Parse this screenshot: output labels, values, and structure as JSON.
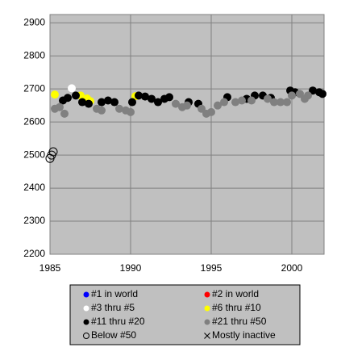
{
  "chart_data": {
    "type": "scatter",
    "xlim": [
      1985,
      2002
    ],
    "xticks": [
      1985,
      1990,
      1995,
      2000
    ],
    "ylim": [
      2200,
      2925
    ],
    "yticks": [
      2200,
      2300,
      2400,
      2500,
      2600,
      2700,
      2800,
      2900
    ],
    "grid": true,
    "legend": "bottom",
    "series": [
      {
        "name": "#1 in world",
        "color": "#0000ff",
        "marker": "filled",
        "x": [],
        "values": []
      },
      {
        "name": "#2 in world",
        "color": "#ff0000",
        "marker": "filled",
        "x": [],
        "values": []
      },
      {
        "name": "#3 thru #5",
        "color": "#ffffff",
        "marker": "filled",
        "x": [
          1986.35
        ],
        "values": [
          2702
        ]
      },
      {
        "name": "#6 thru #10",
        "color": "#ffff00",
        "marker": "filled",
        "x": [
          1985.3,
          1986.9,
          1987.3,
          1987.5,
          1990.3
        ],
        "values": [
          2683,
          2680,
          2671,
          2663,
          2678
        ]
      },
      {
        "name": "#11 thru #20",
        "color": "#000000",
        "marker": "filled",
        "x": [
          1985.8,
          1986.1,
          1986.6,
          1987.0,
          1987.4,
          1988.2,
          1988.6,
          1989.0,
          1990.1,
          1990.5,
          1990.9,
          1991.3,
          1991.7,
          1992.1,
          1992.4,
          1993.6,
          1994.2,
          1996.0,
          1997.2,
          1997.7,
          1998.2,
          1998.7,
          1999.9,
          2000.2,
          2001.3,
          2001.7,
          2001.9
        ],
        "values": [
          2665,
          2673,
          2680,
          2660,
          2655,
          2660,
          2665,
          2660,
          2660,
          2680,
          2677,
          2670,
          2660,
          2670,
          2675,
          2660,
          2655,
          2675,
          2670,
          2680,
          2680,
          2673,
          2695,
          2690,
          2695,
          2690,
          2685
        ]
      },
      {
        "name": "#21 thru #50",
        "color": "#808080",
        "marker": "filled",
        "x": [
          1985.3,
          1985.6,
          1985.9,
          1987.9,
          1988.2,
          1989.3,
          1989.7,
          1990.0,
          1992.8,
          1993.2,
          1993.5,
          1994.4,
          1994.7,
          1995.0,
          1995.4,
          1995.8,
          1996.5,
          1996.9,
          1997.5,
          1998.5,
          1998.9,
          1999.3,
          1999.7,
          2000.0,
          2000.5,
          2000.8,
          2001.0
        ],
        "values": [
          2640,
          2645,
          2625,
          2640,
          2635,
          2640,
          2635,
          2630,
          2655,
          2645,
          2650,
          2640,
          2625,
          2630,
          2650,
          2660,
          2660,
          2665,
          2665,
          2670,
          2660,
          2660,
          2660,
          2680,
          2685,
          2670,
          2680
        ]
      },
      {
        "name": "Below #50",
        "color": "#000000",
        "marker": "open",
        "x": [
          1985.0,
          1985.1,
          1985.2
        ],
        "values": [
          2490,
          2500,
          2510
        ]
      },
      {
        "name": "Mostly inactive",
        "color": "#000000",
        "marker": "cross",
        "x": [],
        "values": []
      }
    ]
  }
}
